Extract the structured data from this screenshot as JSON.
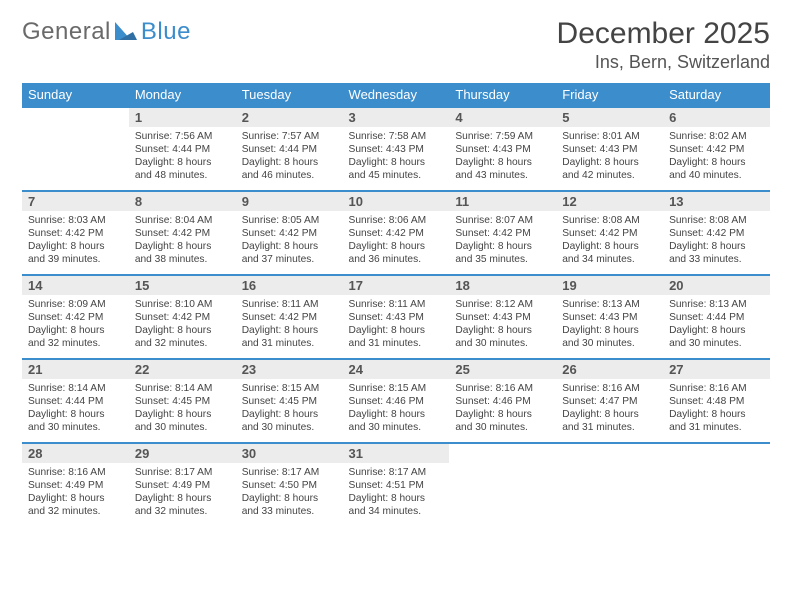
{
  "logo": {
    "general": "General",
    "blue": "Blue"
  },
  "title": "December 2025",
  "location": "Ins, Bern, Switzerland",
  "colors": {
    "accent": "#3c8dcc",
    "header_row": "#ececec",
    "text": "#444444",
    "bg": "#ffffff"
  },
  "font": {
    "family": "Arial",
    "title_size": 30,
    "location_size": 18,
    "weekday_size": 13,
    "daynum_size": 13,
    "body_size": 10.2
  },
  "weekdays": [
    "Sunday",
    "Monday",
    "Tuesday",
    "Wednesday",
    "Thursday",
    "Friday",
    "Saturday"
  ],
  "weeks": [
    [
      {
        "blank": true
      },
      {
        "n": "1",
        "sunrise": "7:56 AM",
        "sunset": "4:44 PM",
        "day_h": 8,
        "day_m": 48
      },
      {
        "n": "2",
        "sunrise": "7:57 AM",
        "sunset": "4:44 PM",
        "day_h": 8,
        "day_m": 46
      },
      {
        "n": "3",
        "sunrise": "7:58 AM",
        "sunset": "4:43 PM",
        "day_h": 8,
        "day_m": 45
      },
      {
        "n": "4",
        "sunrise": "7:59 AM",
        "sunset": "4:43 PM",
        "day_h": 8,
        "day_m": 43
      },
      {
        "n": "5",
        "sunrise": "8:01 AM",
        "sunset": "4:43 PM",
        "day_h": 8,
        "day_m": 42
      },
      {
        "n": "6",
        "sunrise": "8:02 AM",
        "sunset": "4:42 PM",
        "day_h": 8,
        "day_m": 40
      }
    ],
    [
      {
        "n": "7",
        "sunrise": "8:03 AM",
        "sunset": "4:42 PM",
        "day_h": 8,
        "day_m": 39
      },
      {
        "n": "8",
        "sunrise": "8:04 AM",
        "sunset": "4:42 PM",
        "day_h": 8,
        "day_m": 38
      },
      {
        "n": "9",
        "sunrise": "8:05 AM",
        "sunset": "4:42 PM",
        "day_h": 8,
        "day_m": 37
      },
      {
        "n": "10",
        "sunrise": "8:06 AM",
        "sunset": "4:42 PM",
        "day_h": 8,
        "day_m": 36
      },
      {
        "n": "11",
        "sunrise": "8:07 AM",
        "sunset": "4:42 PM",
        "day_h": 8,
        "day_m": 35
      },
      {
        "n": "12",
        "sunrise": "8:08 AM",
        "sunset": "4:42 PM",
        "day_h": 8,
        "day_m": 34
      },
      {
        "n": "13",
        "sunrise": "8:08 AM",
        "sunset": "4:42 PM",
        "day_h": 8,
        "day_m": 33
      }
    ],
    [
      {
        "n": "14",
        "sunrise": "8:09 AM",
        "sunset": "4:42 PM",
        "day_h": 8,
        "day_m": 32
      },
      {
        "n": "15",
        "sunrise": "8:10 AM",
        "sunset": "4:42 PM",
        "day_h": 8,
        "day_m": 32
      },
      {
        "n": "16",
        "sunrise": "8:11 AM",
        "sunset": "4:42 PM",
        "day_h": 8,
        "day_m": 31
      },
      {
        "n": "17",
        "sunrise": "8:11 AM",
        "sunset": "4:43 PM",
        "day_h": 8,
        "day_m": 31
      },
      {
        "n": "18",
        "sunrise": "8:12 AM",
        "sunset": "4:43 PM",
        "day_h": 8,
        "day_m": 30
      },
      {
        "n": "19",
        "sunrise": "8:13 AM",
        "sunset": "4:43 PM",
        "day_h": 8,
        "day_m": 30
      },
      {
        "n": "20",
        "sunrise": "8:13 AM",
        "sunset": "4:44 PM",
        "day_h": 8,
        "day_m": 30
      }
    ],
    [
      {
        "n": "21",
        "sunrise": "8:14 AM",
        "sunset": "4:44 PM",
        "day_h": 8,
        "day_m": 30
      },
      {
        "n": "22",
        "sunrise": "8:14 AM",
        "sunset": "4:45 PM",
        "day_h": 8,
        "day_m": 30
      },
      {
        "n": "23",
        "sunrise": "8:15 AM",
        "sunset": "4:45 PM",
        "day_h": 8,
        "day_m": 30
      },
      {
        "n": "24",
        "sunrise": "8:15 AM",
        "sunset": "4:46 PM",
        "day_h": 8,
        "day_m": 30
      },
      {
        "n": "25",
        "sunrise": "8:16 AM",
        "sunset": "4:46 PM",
        "day_h": 8,
        "day_m": 30
      },
      {
        "n": "26",
        "sunrise": "8:16 AM",
        "sunset": "4:47 PM",
        "day_h": 8,
        "day_m": 31
      },
      {
        "n": "27",
        "sunrise": "8:16 AM",
        "sunset": "4:48 PM",
        "day_h": 8,
        "day_m": 31
      }
    ],
    [
      {
        "n": "28",
        "sunrise": "8:16 AM",
        "sunset": "4:49 PM",
        "day_h": 8,
        "day_m": 32
      },
      {
        "n": "29",
        "sunrise": "8:17 AM",
        "sunset": "4:49 PM",
        "day_h": 8,
        "day_m": 32
      },
      {
        "n": "30",
        "sunrise": "8:17 AM",
        "sunset": "4:50 PM",
        "day_h": 8,
        "day_m": 33
      },
      {
        "n": "31",
        "sunrise": "8:17 AM",
        "sunset": "4:51 PM",
        "day_h": 8,
        "day_m": 34
      },
      {
        "blank": true
      },
      {
        "blank": true
      },
      {
        "blank": true
      }
    ]
  ]
}
